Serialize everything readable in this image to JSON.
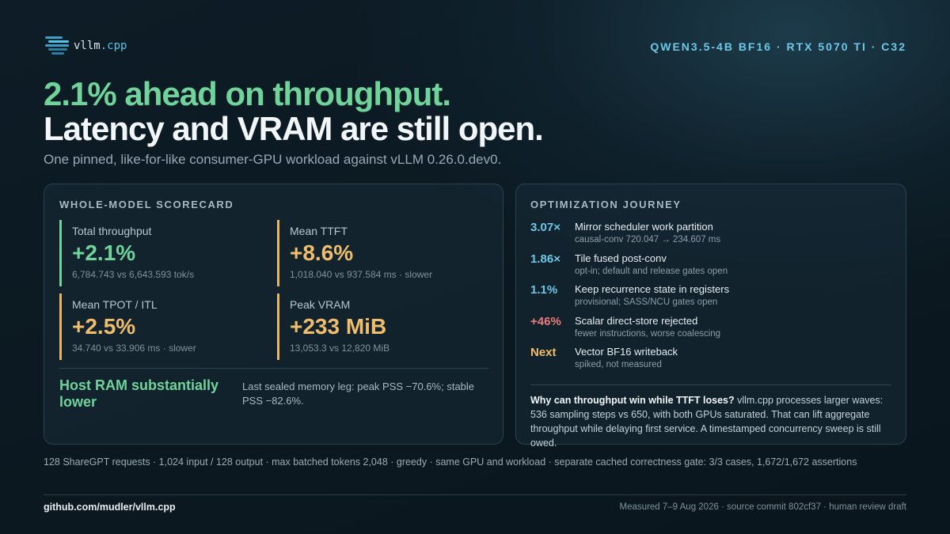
{
  "header": {
    "logo": "vllm",
    "logo_accent": ".cpp",
    "tag": "QWEN3.5-4B BF16 · RTX 5070 TI · C32"
  },
  "headline": {
    "line1": "2.1% ahead on throughput.",
    "line2": "Latency and VRAM are still open.",
    "subtitle": "One pinned, like-for-like consumer-GPU workload against vLLM 0.26.0.dev0."
  },
  "scorecard": {
    "title": "WHOLE-MODEL SCORECARD",
    "metrics": [
      {
        "label": "Total throughput",
        "value": "+2.1%",
        "detail": "6,784.743 vs 6,643.593 tok/s"
      },
      {
        "label": "Mean TTFT",
        "value": "+8.6%",
        "detail": "1,018.040 vs 937.584 ms · slower"
      },
      {
        "label": "Mean TPOT / ITL",
        "value": "+2.5%",
        "detail": "34.740 vs 33.906 ms · slower"
      },
      {
        "label": "Peak VRAM",
        "value": "+233 MiB",
        "detail": "13,053.3 vs 12,820 MiB"
      }
    ],
    "host": {
      "title": "Host RAM substantially lower",
      "detail": "Last sealed memory leg: peak PSS −70.6%; stable PSS −82.6%."
    }
  },
  "journey": {
    "title": "OPTIMIZATION JOURNEY",
    "steps": [
      {
        "badge": "3.07×",
        "title": "Mirror scheduler work partition",
        "detail": "causal-conv 720.047 → 234.607 ms"
      },
      {
        "badge": "1.86×",
        "title": "Tile fused post-conv",
        "detail": "opt-in; default and release gates open"
      },
      {
        "badge": "1.1%",
        "title": "Keep recurrence state in registers",
        "detail": "provisional; SASS/NCU gates open"
      },
      {
        "badge": "+46%",
        "title": "Scalar direct-store rejected",
        "detail": "fewer instructions, worse coalescing"
      },
      {
        "badge": "Next",
        "title": "Vector BF16 writeback",
        "detail": "spiked, not measured"
      }
    ],
    "note": {
      "lead": "Why can throughput win while TTFT loses?",
      "text": "vllm.cpp processes larger waves: 536 sampling steps vs 650, with both GPUs saturated. That can lift aggregate throughput while delaying first service. A timestamped concurrency sweep is still owed."
    }
  },
  "footnote": "128 ShareGPT requests · 1,024 input / 128 output · max batched tokens 2,048 · greedy · same GPU and workload · separate cached correctness gate: 3/3 cases, 1,672/1,672 assertions",
  "footer": {
    "link": "github.com/mudler/vllm.cpp",
    "meta": "Measured 7–9 Aug 2026 · source commit 802cf37 · human review draft"
  }
}
